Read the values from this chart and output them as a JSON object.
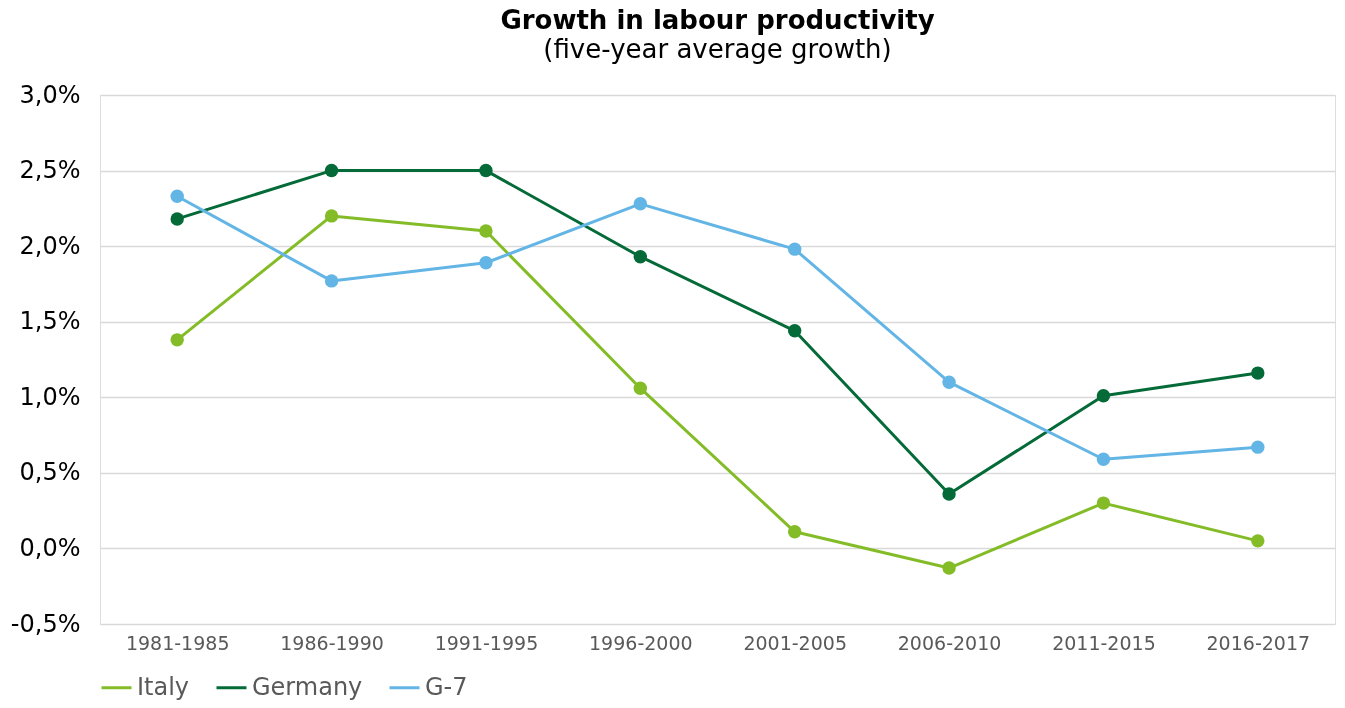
{
  "chart_data": {
    "type": "line",
    "title": "Growth in labour productivity",
    "subtitle": "(five-year average growth)",
    "categories": [
      "1981-1985",
      "1986-1990",
      "1991-1995",
      "1996-2000",
      "2001-2005",
      "2006-2010",
      "2011-2015",
      "2016-2017"
    ],
    "series": [
      {
        "name": "Italy",
        "color": "#84bc28",
        "values": [
          1.38,
          2.2,
          2.1,
          1.06,
          0.11,
          -0.13,
          0.3,
          0.05
        ]
      },
      {
        "name": "Germany",
        "color": "#046a38",
        "values": [
          2.18,
          2.5,
          2.5,
          1.93,
          1.44,
          0.36,
          1.01,
          1.16
        ]
      },
      {
        "name": "G-7",
        "color": "#62b5e5",
        "values": [
          2.33,
          1.77,
          1.89,
          2.28,
          1.98,
          1.1,
          0.59,
          0.67
        ]
      }
    ],
    "ylim": [
      -0.5,
      3.0
    ],
    "yticks": [
      {
        "value": -0.5,
        "label": "-0,5%"
      },
      {
        "value": 0,
        "label": "0,0%"
      },
      {
        "value": 0.5,
        "label": "0,5%"
      },
      {
        "value": 1.0,
        "label": "1,0%"
      },
      {
        "value": 1.5,
        "label": "1,5%"
      },
      {
        "value": 2.0,
        "label": "2,0%"
      },
      {
        "value": 2.5,
        "label": "2,5%"
      },
      {
        "value": 3.0,
        "label": "3,0%"
      }
    ],
    "grid": "y",
    "legend": "bottom",
    "marker": "circle",
    "line_style": "solid"
  }
}
